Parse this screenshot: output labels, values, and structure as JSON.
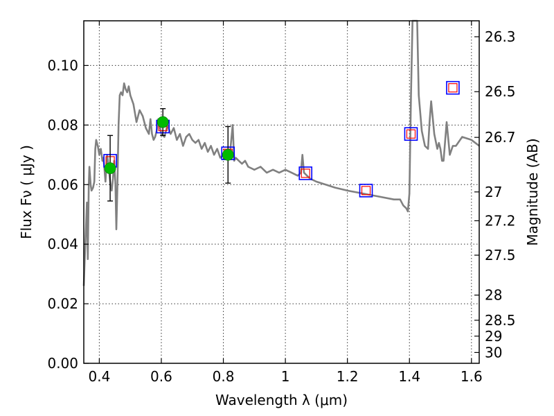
{
  "chart_data": {
    "type": "line",
    "xlabel": "Wavelength  λ (μm)",
    "ylabel": "Flux  Fν  ( μJy )",
    "y2label": "Magnitude (AB)",
    "xlim": [
      0.35,
      1.625
    ],
    "ylim": [
      0.0,
      0.115
    ],
    "xticks": [
      0.4,
      0.6,
      0.8,
      1.0,
      1.2,
      1.4,
      1.6
    ],
    "xtick_labels": [
      "0.4",
      "0.6",
      "0.8",
      "1",
      "1.2",
      "1.4",
      "1.6"
    ],
    "yticks": [
      0.0,
      0.02,
      0.04,
      0.06,
      0.08,
      0.1
    ],
    "ytick_labels": [
      "0.00",
      "0.02",
      "0.04",
      "0.06",
      "0.08",
      "0.10"
    ],
    "y2ticks": [
      26.3,
      26.5,
      26.7,
      27,
      27.2,
      27.5,
      28,
      28.5,
      29,
      30
    ],
    "y2tick_labels": [
      "26.3",
      "26.5",
      "26.7",
      "27",
      "27.2",
      "27.5",
      "28",
      "28.5",
      "29",
      "30"
    ],
    "grid": true,
    "colors": {
      "sed": "#808080",
      "model_box": "#0000ff",
      "model_inner": "#ff0000",
      "observed": "#00bb00",
      "errorbar": "#000000"
    },
    "series": [
      {
        "type": "line",
        "x": [
          0.35,
          0.355,
          0.36,
          0.363,
          0.366,
          0.368,
          0.372,
          0.375,
          0.38,
          0.384,
          0.387,
          0.39,
          0.395,
          0.4,
          0.405,
          0.41,
          0.413,
          0.416,
          0.42,
          0.425,
          0.428,
          0.432,
          0.436,
          0.44,
          0.444,
          0.448,
          0.452,
          0.455,
          0.458,
          0.462,
          0.466,
          0.47,
          0.475,
          0.48,
          0.485,
          0.49,
          0.495,
          0.5,
          0.51,
          0.52,
          0.53,
          0.54,
          0.55,
          0.56,
          0.565,
          0.57,
          0.575,
          0.58,
          0.585,
          0.59,
          0.6,
          0.61,
          0.62,
          0.63,
          0.64,
          0.65,
          0.66,
          0.67,
          0.68,
          0.69,
          0.7,
          0.71,
          0.72,
          0.73,
          0.74,
          0.75,
          0.76,
          0.77,
          0.78,
          0.79,
          0.8,
          0.81,
          0.82,
          0.83,
          0.835,
          0.84,
          0.85,
          0.86,
          0.87,
          0.88,
          0.9,
          0.92,
          0.94,
          0.96,
          0.98,
          1.0,
          1.02,
          1.04,
          1.05,
          1.055,
          1.06,
          1.07,
          1.08,
          1.1,
          1.13,
          1.16,
          1.2,
          1.25,
          1.3,
          1.35,
          1.37,
          1.38,
          1.39,
          1.395,
          1.4,
          1.405,
          1.41,
          1.415,
          1.42,
          1.425,
          1.43,
          1.44,
          1.45,
          1.46,
          1.465,
          1.47,
          1.48,
          1.49,
          1.495,
          1.5,
          1.505,
          1.51,
          1.52,
          1.53,
          1.54,
          1.55,
          1.57,
          1.6,
          1.625
        ],
        "y": [
          0.026,
          0.04,
          0.054,
          0.035,
          0.06,
          0.066,
          0.06,
          0.058,
          0.059,
          0.061,
          0.072,
          0.075,
          0.073,
          0.07,
          0.072,
          0.068,
          0.069,
          0.066,
          0.061,
          0.07,
          0.068,
          0.064,
          0.06,
          0.058,
          0.062,
          0.068,
          0.06,
          0.045,
          0.058,
          0.08,
          0.09,
          0.091,
          0.09,
          0.094,
          0.092,
          0.091,
          0.093,
          0.09,
          0.087,
          0.081,
          0.085,
          0.083,
          0.079,
          0.077,
          0.082,
          0.077,
          0.075,
          0.076,
          0.078,
          0.082,
          0.077,
          0.076,
          0.08,
          0.077,
          0.079,
          0.075,
          0.077,
          0.073,
          0.076,
          0.077,
          0.075,
          0.074,
          0.075,
          0.072,
          0.074,
          0.071,
          0.073,
          0.07,
          0.072,
          0.069,
          0.07,
          0.071,
          0.069,
          0.08,
          0.068,
          0.069,
          0.068,
          0.067,
          0.068,
          0.066,
          0.065,
          0.066,
          0.064,
          0.065,
          0.064,
          0.065,
          0.064,
          0.063,
          0.064,
          0.07,
          0.064,
          0.063,
          0.062,
          0.061,
          0.06,
          0.059,
          0.058,
          0.057,
          0.056,
          0.055,
          0.055,
          0.053,
          0.052,
          0.051,
          0.057,
          0.09,
          0.115,
          0.115,
          0.115,
          0.115,
          0.09,
          0.078,
          0.073,
          0.072,
          0.081,
          0.088,
          0.077,
          0.072,
          0.074,
          0.072,
          0.068,
          0.068,
          0.081,
          0.07,
          0.073,
          0.073,
          0.076,
          0.075,
          0.073
        ]
      },
      {
        "type": "model-boxes",
        "x": [
          0.435,
          0.605,
          0.815,
          1.065,
          1.26,
          1.405,
          1.54
        ],
        "y": [
          0.068,
          0.0795,
          0.0705,
          0.0638,
          0.058,
          0.077,
          0.0925
        ]
      },
      {
        "type": "observed",
        "x": [
          0.435,
          0.605,
          0.815
        ],
        "y": [
          0.0655,
          0.081,
          0.07
        ],
        "yerr_low": [
          0.0545,
          0.0765,
          0.0605
        ],
        "yerr_high": [
          0.0765,
          0.0855,
          0.0795
        ]
      }
    ]
  }
}
